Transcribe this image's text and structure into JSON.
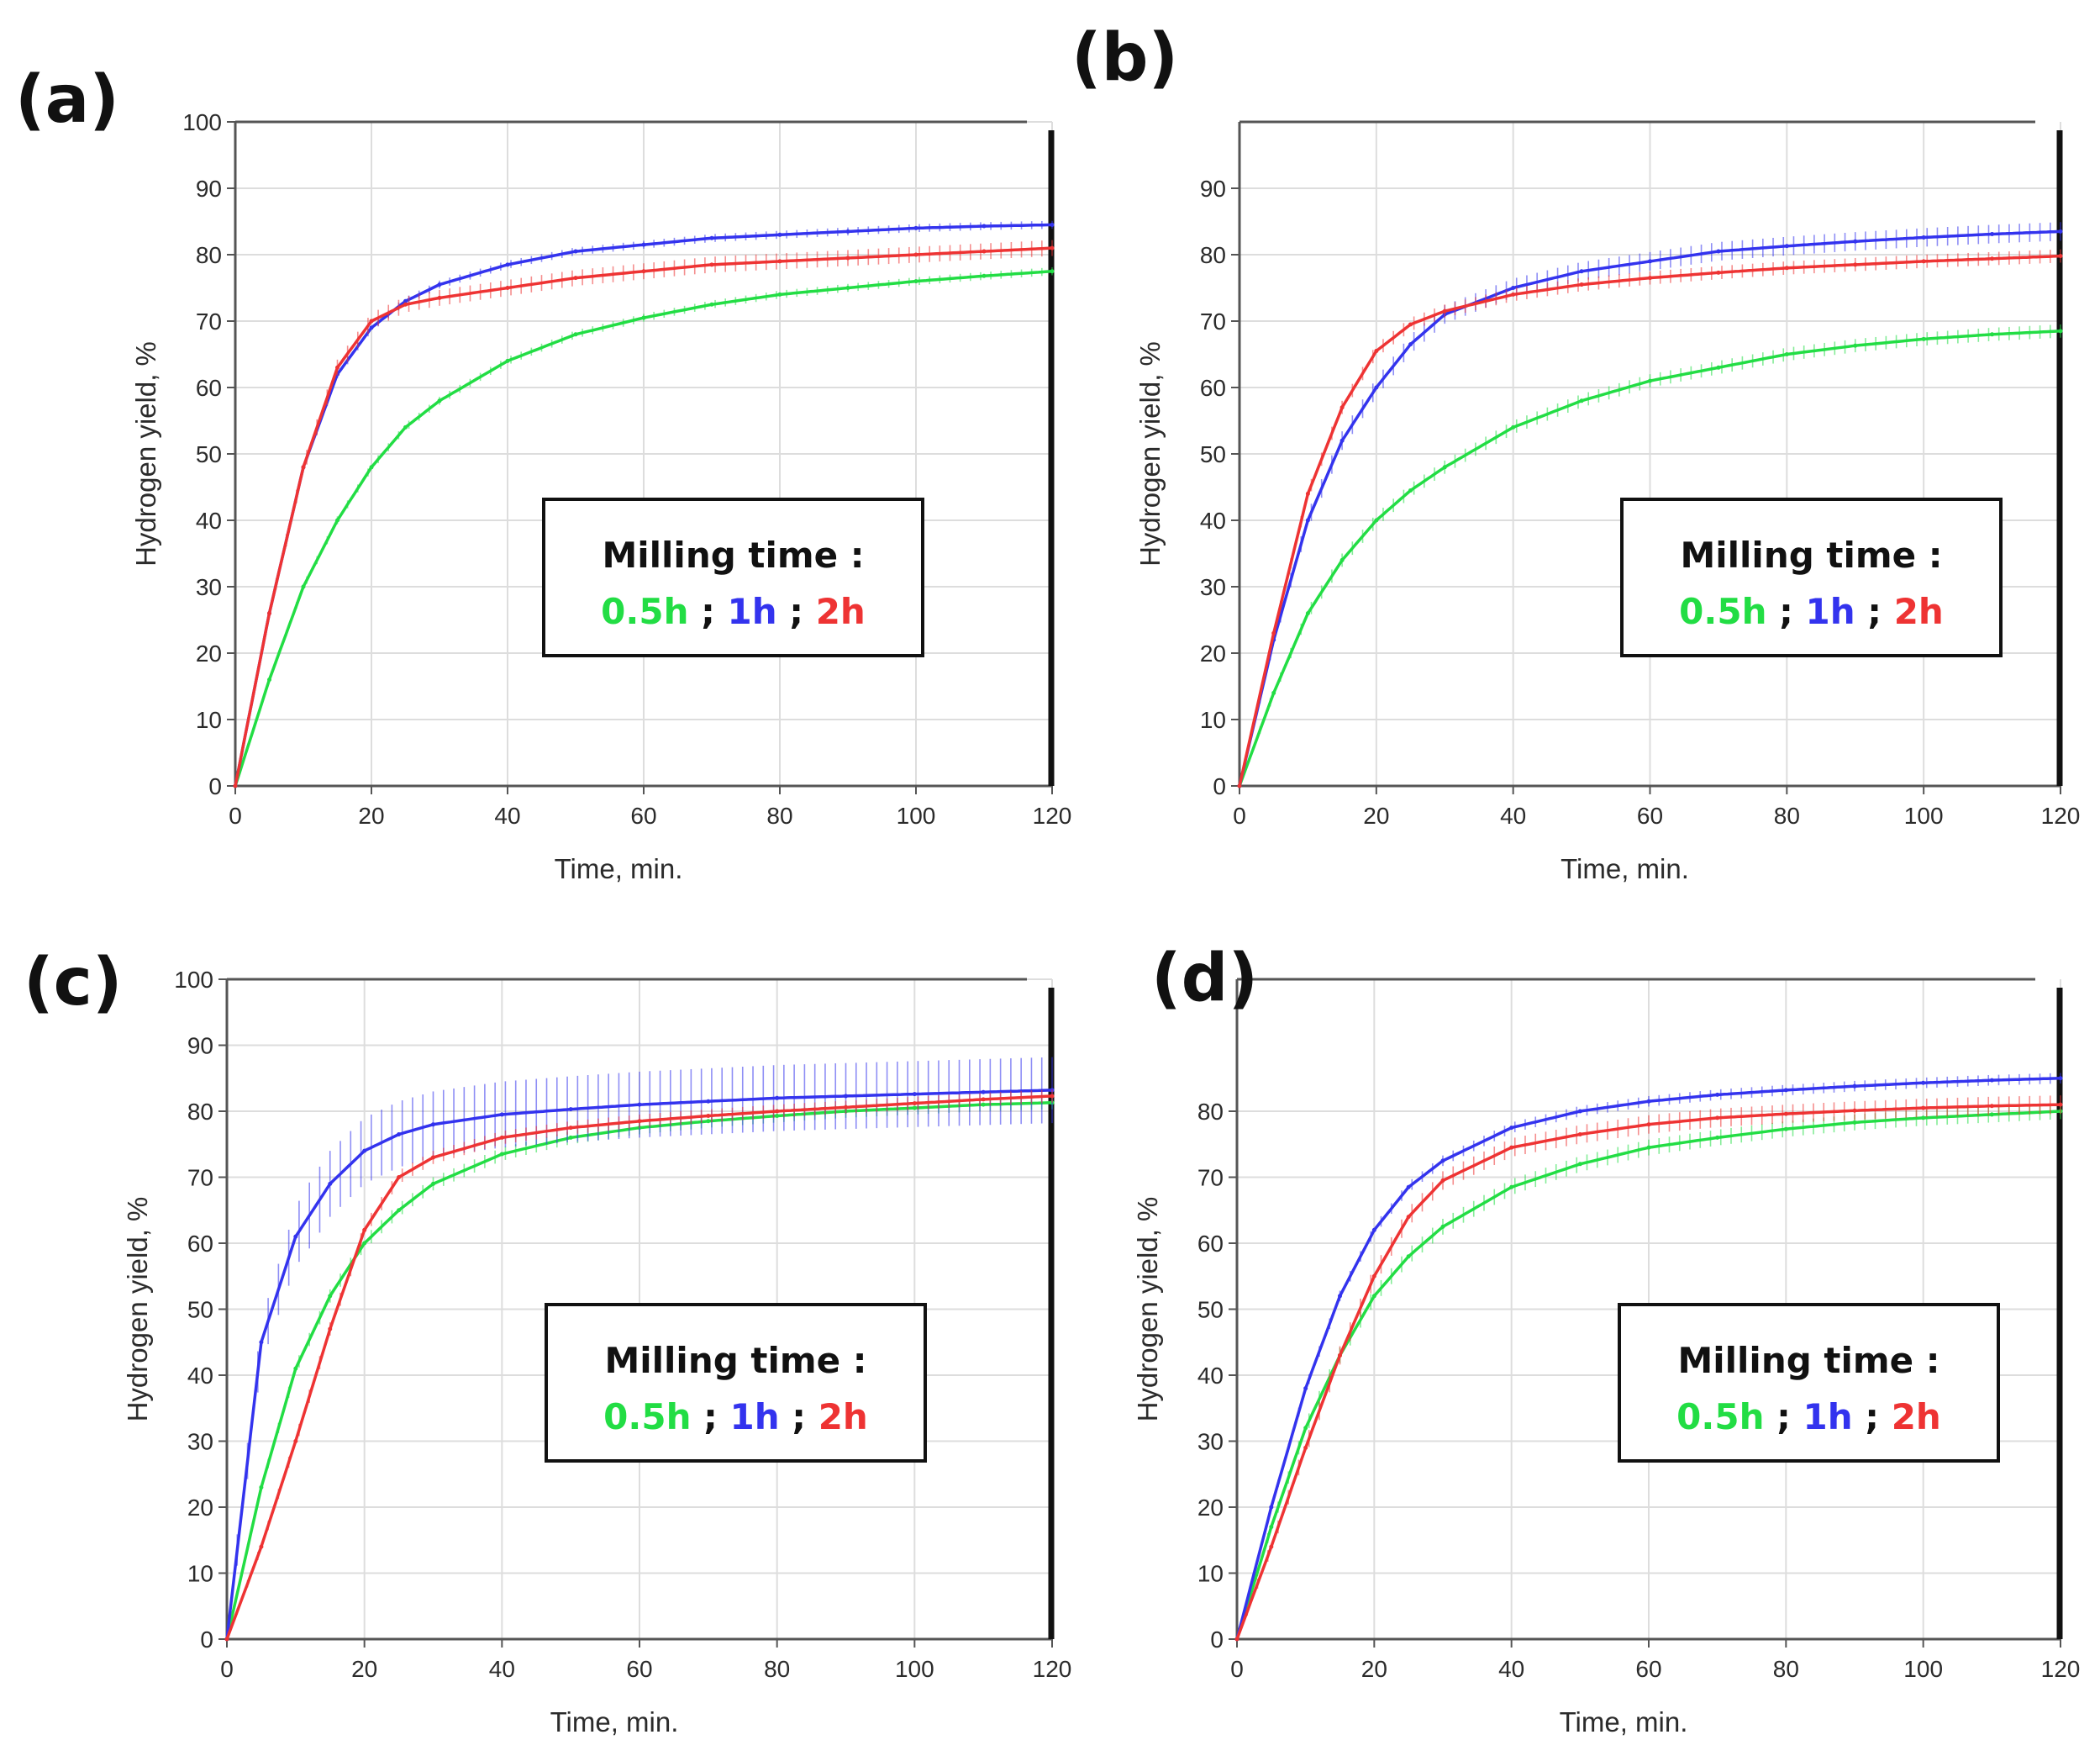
{
  "figure": {
    "legend_title": "Milling time :",
    "legend_sep": ";",
    "colors": {
      "0.5h": "#22dd44",
      "1h": "#3333ee",
      "2h": "#ee3333"
    }
  },
  "chart_data": [
    {
      "panel": "(a)",
      "type": "line",
      "xlabel": "Time, min.",
      "ylabel": "Hydrogen yield, %",
      "xlim": [
        0,
        120
      ],
      "ylim": [
        0,
        100
      ],
      "xticks": [
        "0",
        "20",
        "40",
        "60",
        "80",
        "100",
        "120"
      ],
      "yticks": [
        "0",
        "10",
        "20",
        "30",
        "40",
        "50",
        "60",
        "70",
        "80",
        "90",
        "100"
      ],
      "grid": true,
      "legend": {
        "title": "Milling time :",
        "entries": [
          "0.5h",
          "1h",
          "2h"
        ],
        "position": "center-right"
      },
      "x": [
        0,
        5,
        10,
        15,
        20,
        25,
        30,
        40,
        50,
        60,
        70,
        80,
        90,
        100,
        110,
        120
      ],
      "series": [
        {
          "name": "0.5h",
          "color": "#22dd44",
          "values": [
            0,
            16,
            30,
            40,
            48,
            54,
            58,
            64,
            68,
            70.5,
            72.5,
            74,
            75,
            76,
            76.8,
            77.5
          ],
          "err": 0.6
        },
        {
          "name": "1h",
          "color": "#3333ee",
          "values": [
            0,
            26,
            48,
            62,
            69,
            73,
            75.5,
            78.5,
            80.5,
            81.5,
            82.5,
            83,
            83.5,
            84,
            84.3,
            84.5
          ],
          "err": 0.6
        },
        {
          "name": "2h",
          "color": "#ee3333",
          "values": [
            0,
            26,
            48,
            63,
            70,
            72.5,
            73.5,
            75,
            76.5,
            77.5,
            78.5,
            79,
            79.5,
            80,
            80.5,
            81
          ],
          "err": 1.2
        }
      ]
    },
    {
      "panel": "(b)",
      "type": "line",
      "xlabel": "Time, min.",
      "ylabel": "Hydrogen yield, %",
      "xlim": [
        0,
        120
      ],
      "ylim": [
        0,
        100
      ],
      "xticks": [
        "0",
        "20",
        "40",
        "60",
        "80",
        "100",
        "120"
      ],
      "yticks": [
        "0",
        "10",
        "20",
        "30",
        "40",
        "50",
        "60",
        "70",
        "80",
        "90"
      ],
      "grid": true,
      "legend": {
        "title": "Milling time :",
        "entries": [
          "0.5h",
          "1h",
          "2h"
        ],
        "position": "center-right"
      },
      "x": [
        0,
        5,
        10,
        15,
        20,
        25,
        30,
        40,
        50,
        60,
        70,
        80,
        90,
        100,
        110,
        120
      ],
      "series": [
        {
          "name": "0.5h",
          "color": "#22dd44",
          "values": [
            0,
            14,
            26,
            34,
            40,
            44.5,
            48,
            54,
            58,
            61,
            63,
            65,
            66.3,
            67.3,
            68,
            68.5
          ],
          "err": 1.0
        },
        {
          "name": "1h",
          "color": "#3333ee",
          "values": [
            0,
            22,
            40,
            52,
            60,
            66.5,
            71,
            75,
            77.5,
            79,
            80.5,
            81.3,
            82,
            82.6,
            83.1,
            83.5
          ],
          "err": 1.4
        },
        {
          "name": "2h",
          "color": "#ee3333",
          "values": [
            0,
            23,
            44,
            57,
            65.5,
            69.5,
            71.5,
            74,
            75.5,
            76.5,
            77.3,
            78,
            78.5,
            79,
            79.4,
            79.8
          ],
          "err": 1.0
        }
      ]
    },
    {
      "panel": "(c)",
      "type": "line",
      "xlabel": "Time, min.",
      "ylabel": "Hydrogen yield, %",
      "xlim": [
        0,
        120
      ],
      "ylim": [
        0,
        100
      ],
      "xticks": [
        "0",
        "20",
        "40",
        "60",
        "80",
        "100",
        "120"
      ],
      "yticks": [
        "0",
        "10",
        "20",
        "30",
        "40",
        "50",
        "60",
        "70",
        "80",
        "90",
        "100"
      ],
      "grid": true,
      "legend": {
        "title": "Milling time :",
        "entries": [
          "0.5h",
          "1h",
          "2h"
        ],
        "position": "center-right"
      },
      "x": [
        0,
        5,
        10,
        15,
        20,
        25,
        30,
        40,
        50,
        60,
        70,
        80,
        90,
        100,
        110,
        120
      ],
      "series": [
        {
          "name": "0.5h",
          "color": "#22dd44",
          "values": [
            0,
            23,
            41,
            52,
            60,
            65,
            69,
            73.5,
            76,
            77.5,
            78.5,
            79.3,
            80,
            80.5,
            81,
            81.3
          ],
          "err": 1.0
        },
        {
          "name": "1h",
          "color": "#3333ee",
          "values": [
            0,
            45,
            61,
            69,
            74,
            76.5,
            78,
            79.5,
            80.3,
            81,
            81.5,
            82,
            82.3,
            82.6,
            82.9,
            83.2
          ],
          "err": 5.0
        },
        {
          "name": "2h",
          "color": "#ee3333",
          "values": [
            0,
            14,
            30,
            47,
            62,
            70,
            73,
            76,
            77.5,
            78.5,
            79.3,
            80,
            80.6,
            81.2,
            81.8,
            82.3
          ],
          "err": 1.0
        }
      ]
    },
    {
      "panel": "(d)",
      "type": "line",
      "xlabel": "Time, min.",
      "ylabel": "Hydrogen yield, %",
      "xlim": [
        0,
        120
      ],
      "ylim": [
        0,
        100
      ],
      "xticks": [
        "0",
        "20",
        "40",
        "60",
        "80",
        "100",
        "120"
      ],
      "yticks": [
        "0",
        "10",
        "20",
        "30",
        "40",
        "50",
        "60",
        "70",
        "80"
      ],
      "grid": true,
      "legend": {
        "title": "Milling time :",
        "entries": [
          "0.5h",
          "1h",
          "2h"
        ],
        "position": "center-right"
      },
      "x": [
        0,
        5,
        10,
        15,
        20,
        25,
        30,
        40,
        50,
        60,
        70,
        80,
        90,
        100,
        110,
        120
      ],
      "series": [
        {
          "name": "0.5h",
          "color": "#22dd44",
          "values": [
            0,
            17,
            32,
            43,
            52,
            58,
            62.5,
            68.5,
            72,
            74.5,
            76,
            77.3,
            78.3,
            79,
            79.5,
            80
          ],
          "err": 1.2
        },
        {
          "name": "1h",
          "color": "#3333ee",
          "values": [
            0,
            20,
            38,
            52,
            62,
            68.5,
            72.5,
            77.5,
            80,
            81.5,
            82.5,
            83.2,
            83.8,
            84.3,
            84.7,
            85
          ],
          "err": 0.8
        },
        {
          "name": "2h",
          "color": "#ee3333",
          "values": [
            0,
            14,
            29,
            43,
            55,
            64,
            69.5,
            74.5,
            76.5,
            78,
            79,
            79.6,
            80.1,
            80.5,
            80.8,
            81
          ],
          "err": 1.4
        }
      ]
    }
  ]
}
